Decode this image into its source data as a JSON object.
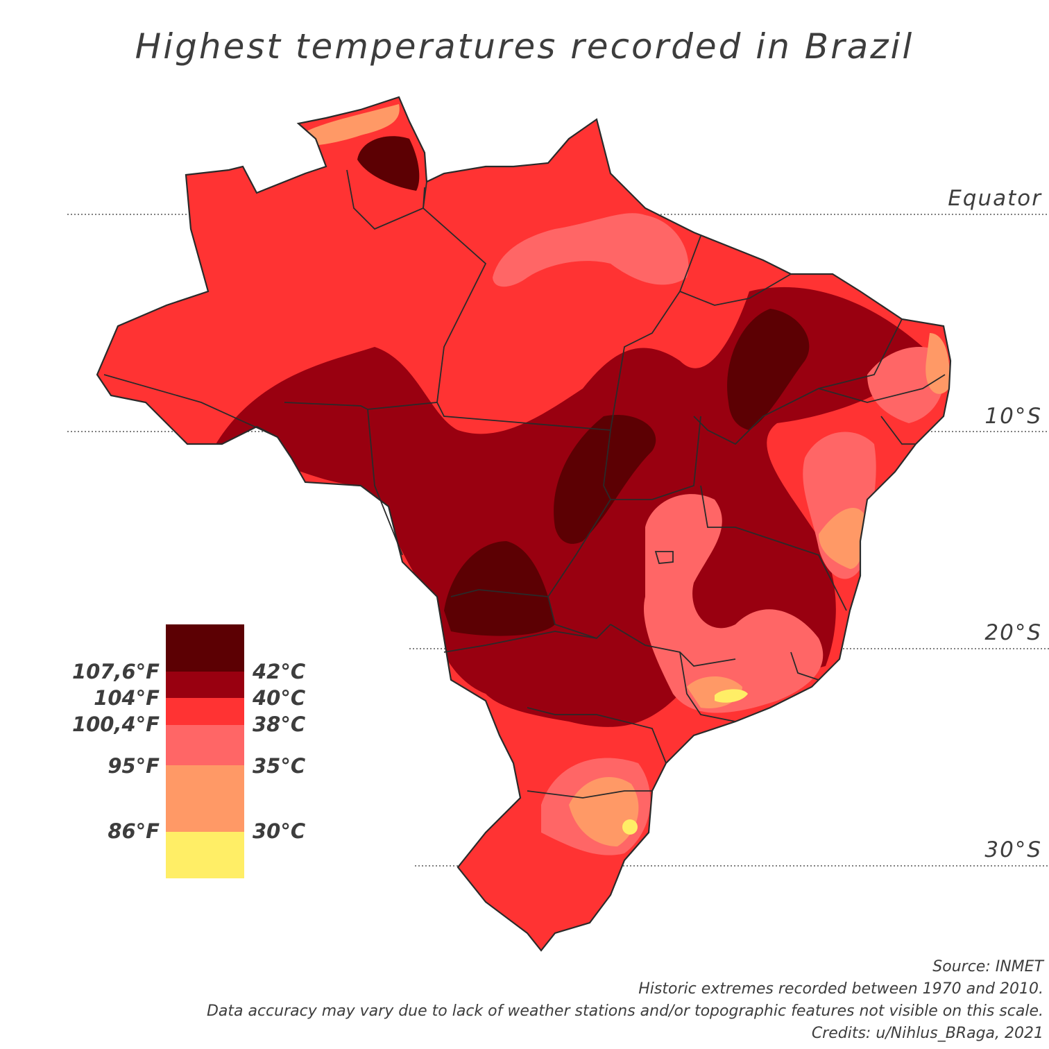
{
  "title": "Highest temperatures recorded in Brazil",
  "latitudes": [
    {
      "label": "Equator"
    },
    {
      "label": "10°S"
    },
    {
      "label": "20°S"
    },
    {
      "label": "30°S"
    }
  ],
  "legend": {
    "classes": [
      {
        "color": "#5c0003",
        "fahrenheit": "107,6°F",
        "celsius": "42°C"
      },
      {
        "color": "#990010",
        "fahrenheit": "104°F",
        "celsius": "40°C"
      },
      {
        "color": "#ff3333",
        "fahrenheit": "100,4°F",
        "celsius": "38°C"
      },
      {
        "color": "#ff6666",
        "fahrenheit": "95°F",
        "celsius": "35°C"
      },
      {
        "color": "#ff9966",
        "fahrenheit": "86°F",
        "celsius": "30°C"
      },
      {
        "color": "#ffee66"
      }
    ]
  },
  "notes": {
    "source": "Source: INMET",
    "period": "Historic extremes recorded between 1970 and 2010.",
    "disclaimer": "Data accuracy may vary due to lack of weather stations and/or topographic features not visible on this scale.",
    "credits": "Credits: u/Nihlus_BRaga, 2021"
  }
}
